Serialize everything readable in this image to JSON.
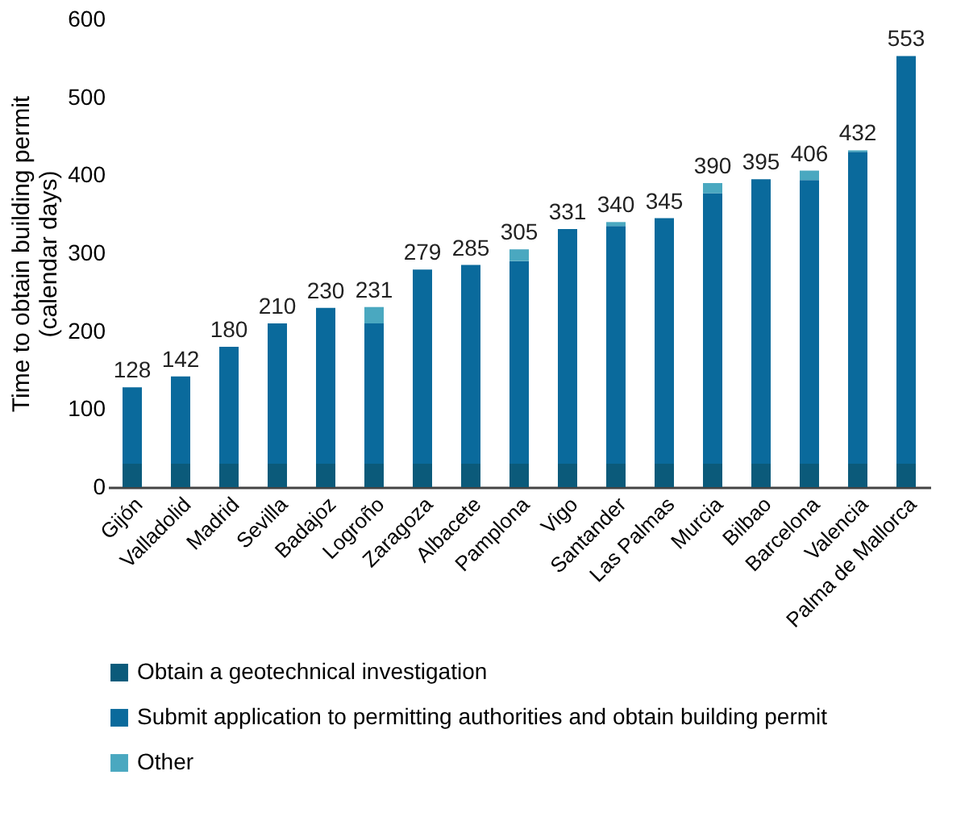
{
  "chart_data": {
    "type": "bar",
    "stacked": true,
    "ylabel": "Time to obtain building permit\n(calendar days)",
    "categories": [
      "Gijón",
      "Valladolid",
      "Madrid",
      "Sevilla",
      "Badajoz",
      "Logroño",
      "Zaragoza",
      "Albacete",
      "Pamplona",
      "Vigo",
      "Santander",
      "Las Palmas",
      "Murcia",
      "Bilbao",
      "Barcelona",
      "Valencia",
      "Palma de Mallorca"
    ],
    "series": [
      {
        "name": "Obtain  a geotechnical investigation",
        "color": "#0b5a7a",
        "values": [
          30,
          30,
          30,
          30,
          30,
          30,
          30,
          30,
          30,
          30,
          30,
          30,
          30,
          30,
          30,
          30,
          30
        ]
      },
      {
        "name": "Submit application to permitting authorities and obtain building permit",
        "color": "#0a6a9c",
        "values": [
          98,
          112,
          150,
          180,
          200,
          180,
          249,
          255,
          260,
          301,
          305,
          315,
          347,
          365,
          364,
          400,
          523
        ]
      },
      {
        "name": "Other",
        "color": "#4aa8c0",
        "values": [
          0,
          0,
          0,
          0,
          0,
          21,
          0,
          0,
          15,
          0,
          5,
          0,
          13,
          0,
          12,
          2,
          0
        ]
      }
    ],
    "totals": [
      "128",
      "142",
      "180",
      "210",
      "230",
      "231",
      "279",
      "285",
      "305",
      "331",
      "340",
      "345",
      "390",
      "395",
      "406",
      "432",
      "553"
    ],
    "ylim": [
      0,
      600
    ],
    "yticks": [
      0,
      100,
      200,
      300,
      400,
      500,
      600
    ],
    "grid": false,
    "legend": "bottom"
  }
}
